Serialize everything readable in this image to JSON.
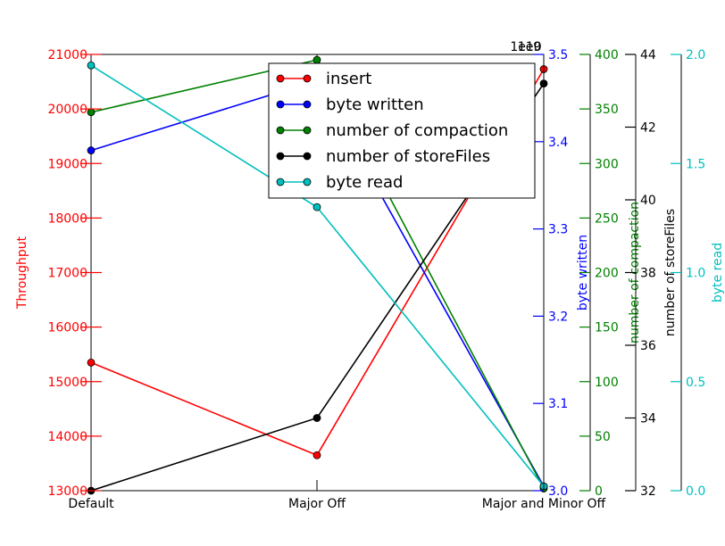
{
  "chart_data": {
    "type": "line",
    "categories": [
      "Default",
      "Major Off",
      "Major and Minor Off"
    ],
    "offset_labels": [
      "1e10",
      "1e9"
    ],
    "legend_position": "top-center",
    "series": [
      {
        "name": "insert",
        "color": "#ff0000",
        "values": [
          15350,
          13650,
          20730
        ],
        "axis": {
          "label": "Throughput",
          "lim": [
            13000,
            21000
          ],
          "ticks": [
            "13000",
            "14000",
            "15000",
            "16000",
            "17000",
            "18000",
            "19000",
            "20000",
            "21000"
          ]
        }
      },
      {
        "name": "byte written",
        "color": "#0000ff",
        "values": [
          3.39,
          3.47,
          3.005
        ],
        "axis": {
          "label": "byte written",
          "lim": [
            3.0,
            3.5
          ],
          "ticks": [
            "3.0",
            "3.1",
            "3.2",
            "3.3",
            "3.4",
            "3.5"
          ]
        }
      },
      {
        "name": "number of compaction",
        "color": "#008000",
        "values": [
          347,
          395,
          2
        ],
        "axis": {
          "label": "number of compaction",
          "lim": [
            0,
            400
          ],
          "ticks": [
            "0",
            "50",
            "100",
            "150",
            "200",
            "250",
            "300",
            "350",
            "400"
          ]
        }
      },
      {
        "name": "number of storeFiles",
        "color": "#000000",
        "values": [
          32,
          34,
          43.2
        ],
        "axis": {
          "label": "number of storeFiles",
          "lim": [
            32,
            44
          ],
          "ticks": [
            "32",
            "34",
            "36",
            "38",
            "40",
            "42",
            "44"
          ]
        }
      },
      {
        "name": "byte read",
        "color": "#00bfbf",
        "values": [
          1.95,
          1.3,
          0.02
        ],
        "axis": {
          "label": "byte read",
          "lim": [
            0.0,
            2.0
          ],
          "ticks": [
            "0.0",
            "0.5",
            "1.0",
            "1.5",
            "2.0"
          ]
        }
      }
    ]
  }
}
